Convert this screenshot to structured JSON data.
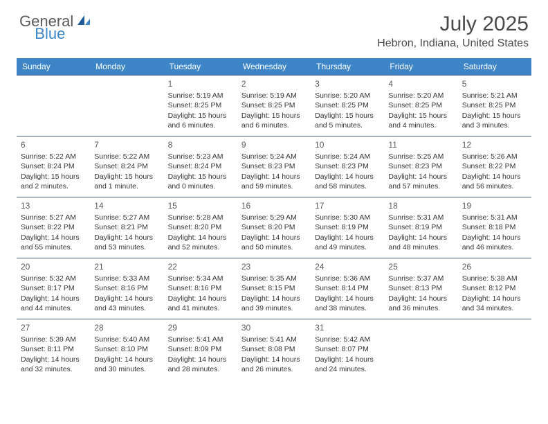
{
  "logo": {
    "general": "General",
    "blue": "Blue"
  },
  "title": "July 2025",
  "location": "Hebron, Indiana, United States",
  "colors": {
    "header_bg": "#3d85c6",
    "header_fg": "#ffffff",
    "row_border": "#3d5a80",
    "text": "#333333",
    "title": "#4a4a4a"
  },
  "dayHeaders": [
    "Sunday",
    "Monday",
    "Tuesday",
    "Wednesday",
    "Thursday",
    "Friday",
    "Saturday"
  ],
  "weeks": [
    [
      null,
      null,
      {
        "n": "1",
        "sr": "5:19 AM",
        "ss": "8:25 PM",
        "dl": "15 hours and 6 minutes."
      },
      {
        "n": "2",
        "sr": "5:19 AM",
        "ss": "8:25 PM",
        "dl": "15 hours and 6 minutes."
      },
      {
        "n": "3",
        "sr": "5:20 AM",
        "ss": "8:25 PM",
        "dl": "15 hours and 5 minutes."
      },
      {
        "n": "4",
        "sr": "5:20 AM",
        "ss": "8:25 PM",
        "dl": "15 hours and 4 minutes."
      },
      {
        "n": "5",
        "sr": "5:21 AM",
        "ss": "8:25 PM",
        "dl": "15 hours and 3 minutes."
      }
    ],
    [
      {
        "n": "6",
        "sr": "5:22 AM",
        "ss": "8:24 PM",
        "dl": "15 hours and 2 minutes."
      },
      {
        "n": "7",
        "sr": "5:22 AM",
        "ss": "8:24 PM",
        "dl": "15 hours and 1 minute."
      },
      {
        "n": "8",
        "sr": "5:23 AM",
        "ss": "8:24 PM",
        "dl": "15 hours and 0 minutes."
      },
      {
        "n": "9",
        "sr": "5:24 AM",
        "ss": "8:23 PM",
        "dl": "14 hours and 59 minutes."
      },
      {
        "n": "10",
        "sr": "5:24 AM",
        "ss": "8:23 PM",
        "dl": "14 hours and 58 minutes."
      },
      {
        "n": "11",
        "sr": "5:25 AM",
        "ss": "8:23 PM",
        "dl": "14 hours and 57 minutes."
      },
      {
        "n": "12",
        "sr": "5:26 AM",
        "ss": "8:22 PM",
        "dl": "14 hours and 56 minutes."
      }
    ],
    [
      {
        "n": "13",
        "sr": "5:27 AM",
        "ss": "8:22 PM",
        "dl": "14 hours and 55 minutes."
      },
      {
        "n": "14",
        "sr": "5:27 AM",
        "ss": "8:21 PM",
        "dl": "14 hours and 53 minutes."
      },
      {
        "n": "15",
        "sr": "5:28 AM",
        "ss": "8:20 PM",
        "dl": "14 hours and 52 minutes."
      },
      {
        "n": "16",
        "sr": "5:29 AM",
        "ss": "8:20 PM",
        "dl": "14 hours and 50 minutes."
      },
      {
        "n": "17",
        "sr": "5:30 AM",
        "ss": "8:19 PM",
        "dl": "14 hours and 49 minutes."
      },
      {
        "n": "18",
        "sr": "5:31 AM",
        "ss": "8:19 PM",
        "dl": "14 hours and 48 minutes."
      },
      {
        "n": "19",
        "sr": "5:31 AM",
        "ss": "8:18 PM",
        "dl": "14 hours and 46 minutes."
      }
    ],
    [
      {
        "n": "20",
        "sr": "5:32 AM",
        "ss": "8:17 PM",
        "dl": "14 hours and 44 minutes."
      },
      {
        "n": "21",
        "sr": "5:33 AM",
        "ss": "8:16 PM",
        "dl": "14 hours and 43 minutes."
      },
      {
        "n": "22",
        "sr": "5:34 AM",
        "ss": "8:16 PM",
        "dl": "14 hours and 41 minutes."
      },
      {
        "n": "23",
        "sr": "5:35 AM",
        "ss": "8:15 PM",
        "dl": "14 hours and 39 minutes."
      },
      {
        "n": "24",
        "sr": "5:36 AM",
        "ss": "8:14 PM",
        "dl": "14 hours and 38 minutes."
      },
      {
        "n": "25",
        "sr": "5:37 AM",
        "ss": "8:13 PM",
        "dl": "14 hours and 36 minutes."
      },
      {
        "n": "26",
        "sr": "5:38 AM",
        "ss": "8:12 PM",
        "dl": "14 hours and 34 minutes."
      }
    ],
    [
      {
        "n": "27",
        "sr": "5:39 AM",
        "ss": "8:11 PM",
        "dl": "14 hours and 32 minutes."
      },
      {
        "n": "28",
        "sr": "5:40 AM",
        "ss": "8:10 PM",
        "dl": "14 hours and 30 minutes."
      },
      {
        "n": "29",
        "sr": "5:41 AM",
        "ss": "8:09 PM",
        "dl": "14 hours and 28 minutes."
      },
      {
        "n": "30",
        "sr": "5:41 AM",
        "ss": "8:08 PM",
        "dl": "14 hours and 26 minutes."
      },
      {
        "n": "31",
        "sr": "5:42 AM",
        "ss": "8:07 PM",
        "dl": "14 hours and 24 minutes."
      },
      null,
      null
    ]
  ],
  "labels": {
    "sunrise": "Sunrise:",
    "sunset": "Sunset:",
    "daylight": "Daylight:"
  }
}
